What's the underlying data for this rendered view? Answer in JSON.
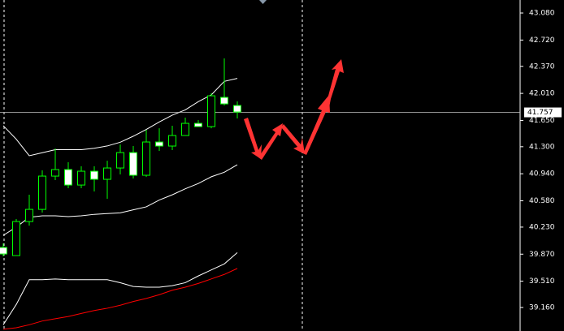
{
  "chart_data": {
    "type": "candlestick",
    "open": [
      39.959,
      39.851,
      40.304,
      40.466,
      40.909,
      40.996,
      40.79,
      40.974,
      40.866,
      41.017,
      41.222,
      40.92,
      41.363,
      41.309,
      41.449,
      41.611,
      41.568,
      41.957,
      41.849
    ],
    "high": [
      40.013,
      40.337,
      40.661,
      40.985,
      41.276,
      41.093,
      41.039,
      41.039,
      41.114,
      41.33,
      41.309,
      41.525,
      41.546,
      41.579,
      41.687,
      41.654,
      42.011,
      42.475,
      41.903
    ],
    "low": [
      39.84,
      39.851,
      40.25,
      40.423,
      40.855,
      40.747,
      40.747,
      40.704,
      40.607,
      40.931,
      40.877,
      40.898,
      41.244,
      41.255,
      41.449,
      41.568,
      41.546,
      41.849,
      41.676
    ],
    "close": [
      39.872,
      40.304,
      40.466,
      40.909,
      40.996,
      40.79,
      40.974,
      40.866,
      41.017,
      41.222,
      40.92,
      41.363,
      41.309,
      41.449,
      41.611,
      41.568,
      41.978,
      41.87,
      41.762
    ],
    "color": "#00ff00",
    "bull_fill": "#000000",
    "bear_fill": "#ffffff",
    "lines": [
      {
        "color": "#ffffff",
        "values": [
          41.58,
          41.4,
          41.18,
          41.22,
          41.26,
          41.26,
          41.26,
          41.28,
          41.31,
          41.36,
          41.44,
          41.53,
          41.63,
          41.72,
          41.79,
          41.9,
          41.99,
          42.17,
          42.21
        ]
      },
      {
        "color": "#ffffff",
        "values": [
          40.12,
          40.23,
          40.36,
          40.38,
          40.38,
          40.37,
          40.38,
          40.4,
          40.41,
          40.42,
          40.46,
          40.5,
          40.59,
          40.66,
          40.74,
          40.81,
          40.9,
          40.96,
          41.06
        ]
      },
      {
        "color": "#ffffff",
        "values": [
          38.93,
          39.2,
          39.53,
          39.53,
          39.54,
          39.53,
          39.53,
          39.53,
          39.53,
          39.49,
          39.44,
          39.43,
          39.43,
          39.45,
          39.49,
          39.58,
          39.66,
          39.74,
          39.89
        ]
      },
      {
        "color": "#ff0000",
        "values": [
          38.87,
          38.89,
          38.93,
          38.98,
          39.01,
          39.04,
          39.08,
          39.12,
          39.15,
          39.19,
          39.24,
          39.28,
          39.33,
          39.39,
          39.43,
          39.48,
          39.54,
          39.6,
          39.68
        ]
      }
    ],
    "current_price": 41.757,
    "ylim": [
      38.847,
      43.253
    ],
    "yticks": [
      {
        "value": 43.08,
        "label": "43.080"
      },
      {
        "value": 42.72,
        "label": "42.720"
      },
      {
        "value": 42.37,
        "label": "42.370"
      },
      {
        "value": 42.01,
        "label": "42.010"
      },
      {
        "value": 41.65,
        "label": "41.650"
      },
      {
        "value": 41.3,
        "label": "41.300"
      },
      {
        "value": 40.94,
        "label": "40.940"
      },
      {
        "value": 40.58,
        "label": "40.580"
      },
      {
        "value": 40.23,
        "label": "40.230"
      },
      {
        "value": 39.87,
        "label": "39.870"
      },
      {
        "value": 39.51,
        "label": "39.510"
      },
      {
        "value": 39.16,
        "label": "39.160"
      }
    ]
  }
}
